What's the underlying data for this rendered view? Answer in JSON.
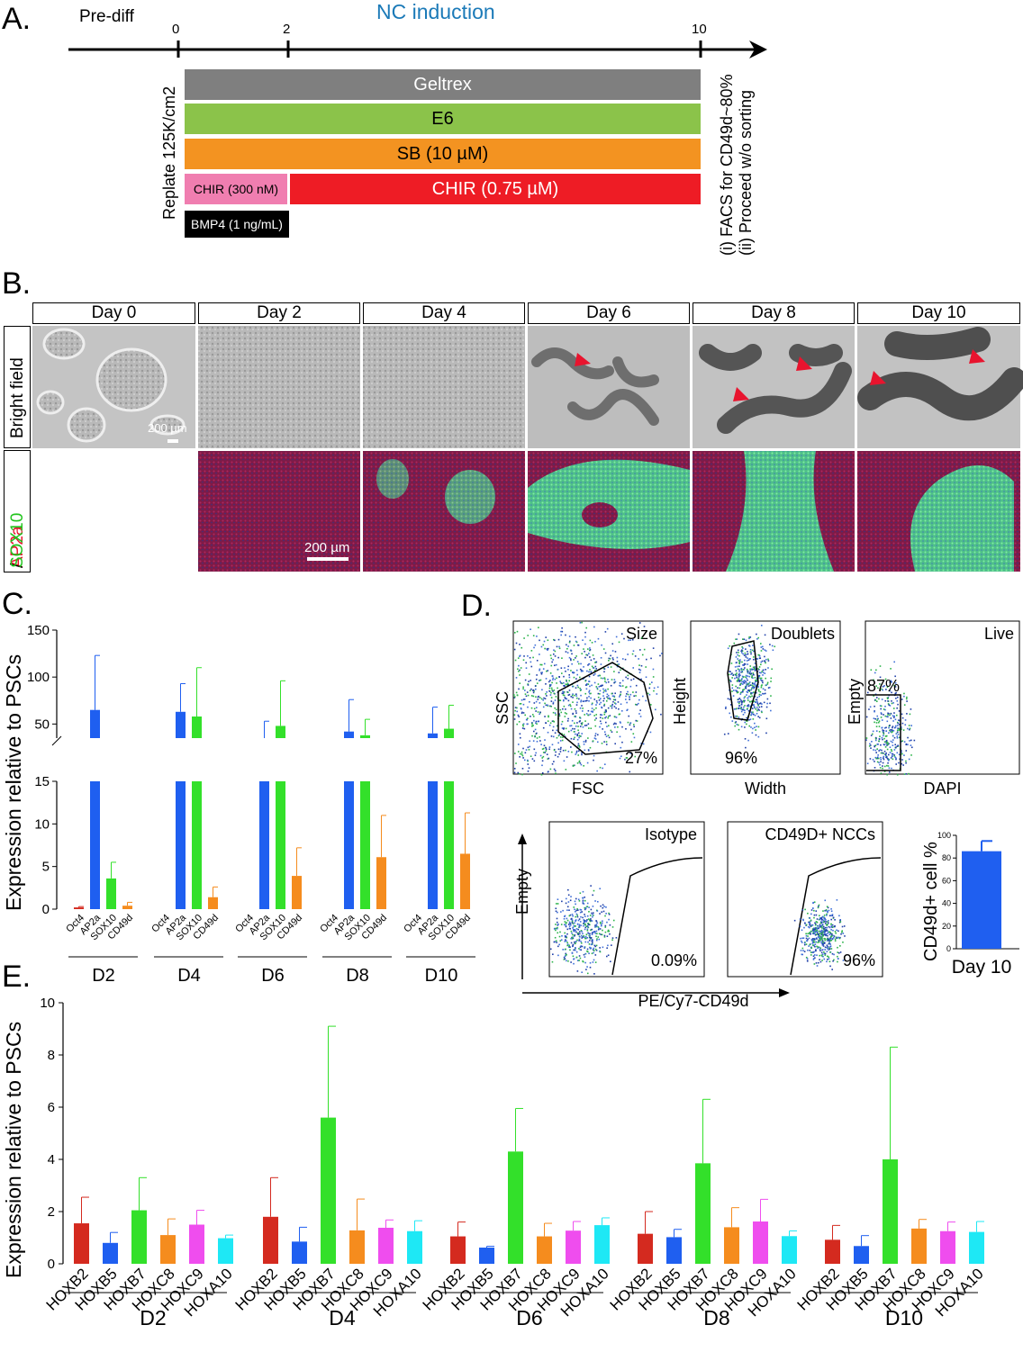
{
  "panel_a": {
    "letter": "A.",
    "prediff_label": "Pre-diff",
    "induction_label": "NC induction",
    "tick_labels": [
      "0",
      "2",
      "10"
    ],
    "replate_label": "Replate 125K/cm2",
    "rows": [
      {
        "label": "Geltrex",
        "color": "#7f7f7f"
      },
      {
        "label": "E6",
        "color": "#8bc34a"
      },
      {
        "label": "SB (10 µM)",
        "color": "#f39321"
      },
      {
        "label": "CHIR (300 nM)",
        "color": "#f07eb0"
      },
      {
        "label": "CHIR (0.75 µM)",
        "color": "#ee1c25"
      },
      {
        "label": "BMP4 (1 ng/mL)",
        "color": "#000000"
      }
    ],
    "end_note_1": "(i) FACS for CD49d~80%",
    "end_note_2": "(ii) Proceed w/o sorting"
  },
  "panel_b": {
    "letter": "B.",
    "days": [
      "Day 0",
      "Day 2",
      "Day 4",
      "Day 6",
      "Day 8",
      "Day 10"
    ],
    "row1_label": "Bright field",
    "row2_label_red": "AP2a",
    "row2_label_sep": "/",
    "row2_label_green": "SOX10",
    "scale_bf": "200 µm",
    "scale_if": "200 µm"
  },
  "panel_c": {
    "letter": "C.",
    "ylabel": "Expression relative to PSCs",
    "genes": [
      "Oct4",
      "AP2a",
      "SOX10",
      "CD49d"
    ],
    "colors": [
      "#d42a1f",
      "#1f5ff0",
      "#33e02a",
      "#f58c1e"
    ],
    "chart_data": {
      "type": "bar",
      "categories": [
        "D2",
        "D4",
        "D6",
        "D8",
        "D10"
      ],
      "series": [
        {
          "name": "Oct4",
          "values": [
            0.2,
            0,
            0,
            0,
            0
          ],
          "errors": [
            0.1,
            0,
            0,
            0,
            0
          ]
        },
        {
          "name": "AP2a",
          "values": [
            65,
            63,
            35,
            42,
            40
          ],
          "errors": [
            58,
            30,
            18,
            34,
            28
          ]
        },
        {
          "name": "SOX10",
          "values": [
            3.6,
            58,
            48,
            38,
            45
          ],
          "errors": [
            1.9,
            52,
            48,
            17,
            25
          ]
        },
        {
          "name": "CD49d",
          "values": [
            0.4,
            1.4,
            3.9,
            6.1,
            6.5
          ],
          "errors": [
            0.4,
            1.2,
            3.3,
            4.9,
            4.8
          ]
        }
      ],
      "y_ticks_lower": [
        "0",
        "5",
        "10",
        "15"
      ],
      "y_ticks_upper": [
        "50",
        "100",
        "150"
      ],
      "ylim_lower": [
        0,
        15
      ],
      "ylim_upper": [
        35,
        150
      ]
    }
  },
  "panel_d": {
    "letter": "D.",
    "plots": [
      {
        "title": "Size",
        "xlabel": "FSC",
        "ylabel": "SSC",
        "pct": "27%"
      },
      {
        "title": "Doublets",
        "xlabel": "Width",
        "ylabel": "Height",
        "pct": "96%"
      },
      {
        "title": "Live",
        "xlabel": "DAPI",
        "ylabel": "Empty",
        "pct": "87%"
      },
      {
        "title": "Isotype",
        "pct": "0.09%"
      },
      {
        "title": "CD49D+ NCCs",
        "pct": "96%"
      }
    ],
    "shared_ylabel": "Empty",
    "shared_xlabel": "PE/Cy7-CD49d",
    "bar_chart": {
      "type": "bar",
      "ylabel": "CD49d+ cell %",
      "categories": [
        "Day 10"
      ],
      "values": [
        86
      ],
      "errors": [
        9
      ],
      "y_ticks": [
        "0",
        "20",
        "40",
        "60",
        "80",
        "100"
      ],
      "ylim": [
        0,
        100
      ],
      "color": "#1f5ff0"
    }
  },
  "panel_e": {
    "letter": "E.",
    "ylabel": "Expression relative to PSCs",
    "genes": [
      "HOXB2",
      "HOXB5",
      "HOXB7",
      "HOXC8",
      "HOXC9",
      "HOXA10"
    ],
    "colors": [
      "#d42a1f",
      "#1f5ff0",
      "#33e02a",
      "#f58c1e",
      "#ef4dee",
      "#1ee8f5"
    ],
    "chart_data": {
      "type": "bar",
      "categories": [
        "D2",
        "D4",
        "D6",
        "D8",
        "D10"
      ],
      "y_ticks": [
        "0",
        "2",
        "4",
        "6",
        "8",
        "10"
      ],
      "ylim": [
        0,
        10
      ],
      "series": [
        {
          "name": "HOXB2",
          "values": [
            1.55,
            1.8,
            1.05,
            1.15,
            0.92
          ],
          "errors": [
            1.0,
            1.5,
            0.55,
            0.85,
            0.55
          ]
        },
        {
          "name": "HOXB5",
          "values": [
            0.8,
            0.85,
            0.62,
            1.02,
            0.68
          ],
          "errors": [
            0.4,
            0.55,
            0.05,
            0.3,
            0.4
          ]
        },
        {
          "name": "HOXB7",
          "values": [
            2.05,
            5.6,
            4.3,
            3.85,
            4.0
          ],
          "errors": [
            1.25,
            3.5,
            1.65,
            2.45,
            4.3
          ]
        },
        {
          "name": "HOXC8",
          "values": [
            1.1,
            1.28,
            1.05,
            1.4,
            1.35
          ],
          "errors": [
            0.62,
            1.2,
            0.5,
            0.75,
            0.35
          ]
        },
        {
          "name": "HOXC9",
          "values": [
            1.5,
            1.38,
            1.27,
            1.62,
            1.25
          ],
          "errors": [
            0.55,
            0.3,
            0.35,
            0.85,
            0.35
          ]
        },
        {
          "name": "HOXA10",
          "values": [
            0.98,
            1.25,
            1.48,
            1.06,
            1.22
          ],
          "errors": [
            0.12,
            0.4,
            0.28,
            0.2,
            0.4
          ]
        }
      ]
    }
  }
}
